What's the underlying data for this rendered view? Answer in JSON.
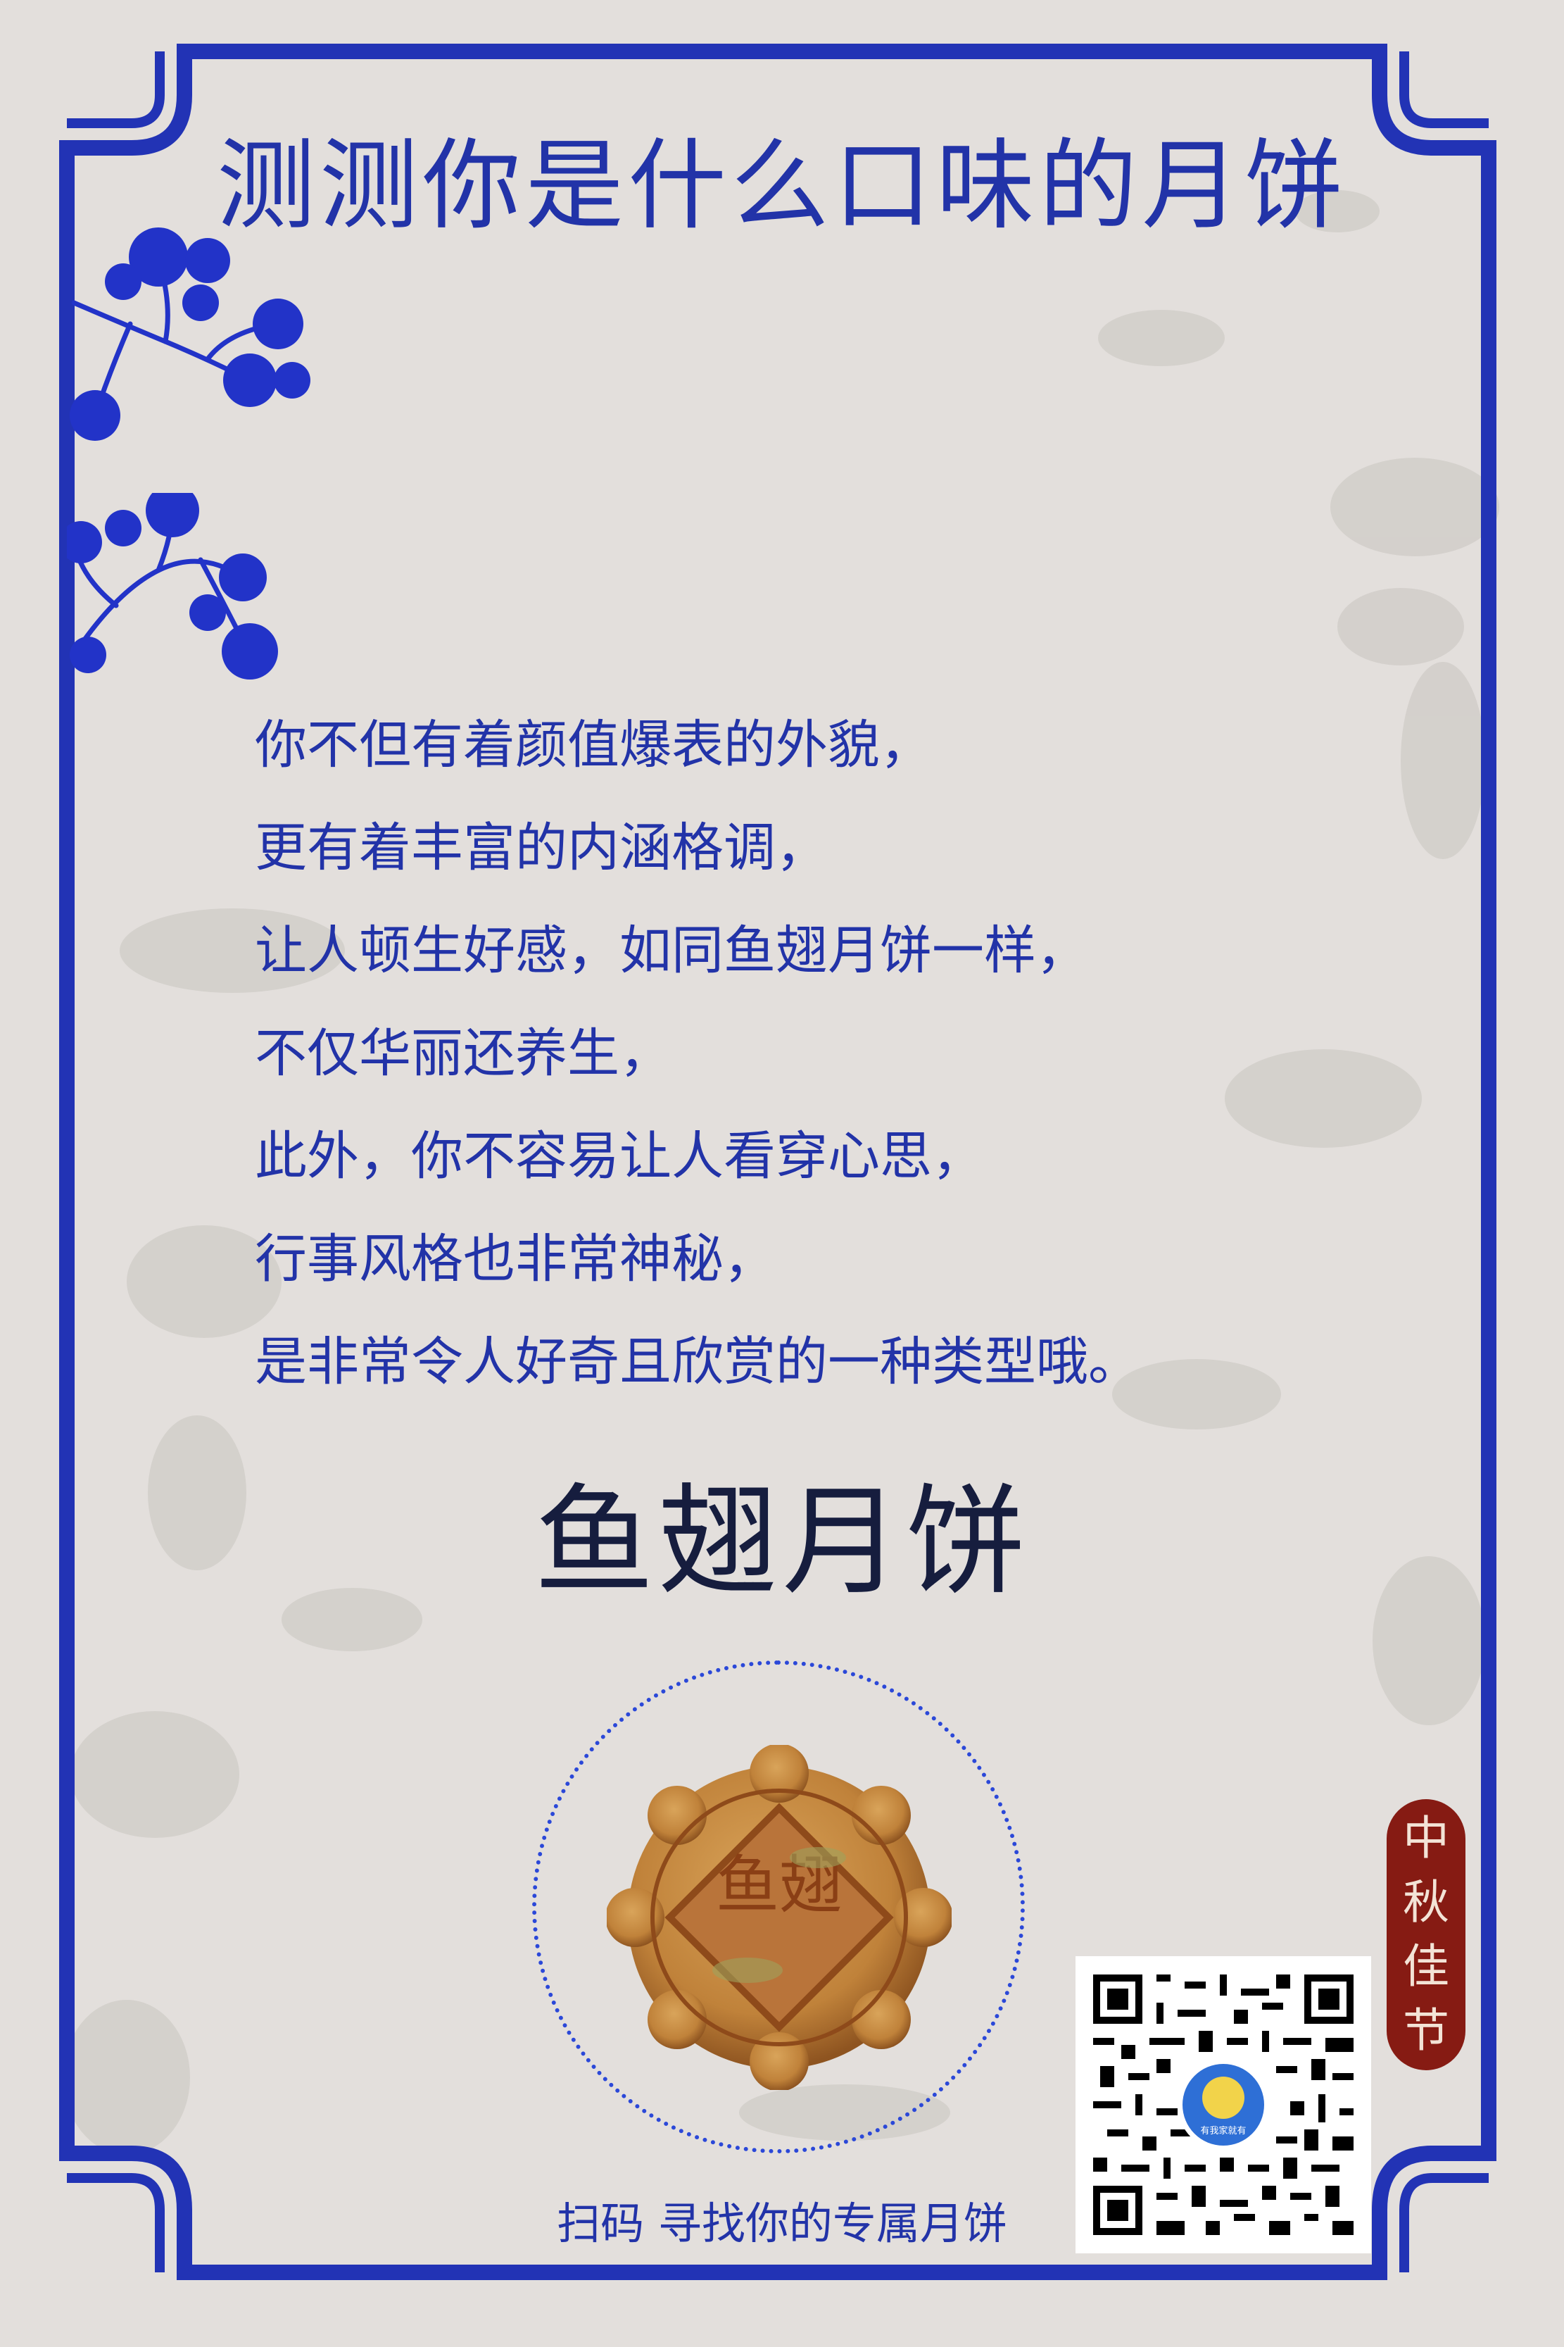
{
  "title": "测测你是什么口味的月饼",
  "poem_lines": [
    "你不但有着颜值爆表的外貌，",
    "更有着丰富的内涵格调，",
    "让人顿生好感，如同鱼翅月饼一样，",
    "不仅华丽还养生，",
    "此外，你不容易让人看穿心思，",
    "行事风格也非常神秘，",
    "是非常令人好奇且欣赏的一种类型哦。"
  ],
  "result_name": "鱼翅月饼",
  "mooncake_stamp": "鱼翅",
  "seal_chars": [
    "中",
    "秋",
    "佳",
    "节"
  ],
  "scan_text": "扫码 寻找你的专属月饼",
  "qr_logo_text": "有我家就有",
  "colors": {
    "background": "#e3dfdc",
    "frame_blue": "#2233b5",
    "title_blue": "#2233a8",
    "result_text": "#161d3e",
    "seal_red": "#861b13",
    "ring_blue": "#2b48d8",
    "mooncake_gold": "#c58a3b"
  },
  "icons": [
    "pine-branch-icon",
    "mooncake-image",
    "qr-code",
    "seal-stamp"
  ]
}
